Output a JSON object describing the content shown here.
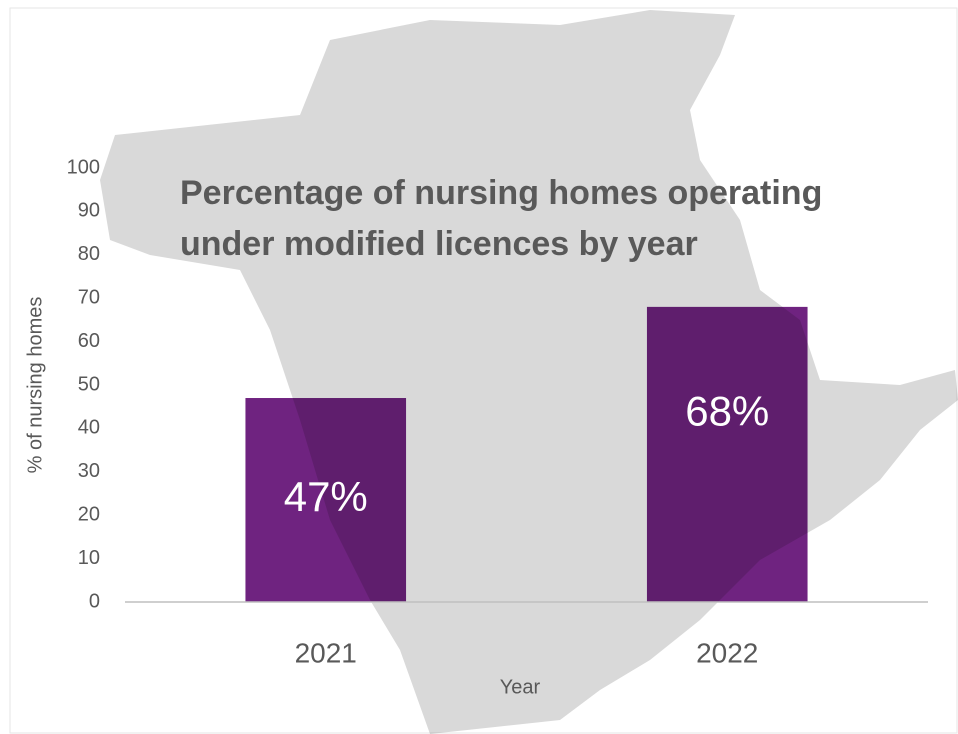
{
  "chart_data": {
    "type": "bar",
    "title": "Percentage of nursing homes operating under modified licences by year",
    "categories": [
      "2021",
      "2022"
    ],
    "values": [
      47,
      68
    ],
    "value_labels": [
      "47%",
      "68%"
    ],
    "color": "#6f2380",
    "x_label": "Year",
    "y_label": "% of nursing homes",
    "ylim": [
      0,
      100
    ],
    "yticks": [
      0,
      10,
      20,
      30,
      40,
      50,
      60,
      70,
      80,
      90,
      100
    ]
  }
}
